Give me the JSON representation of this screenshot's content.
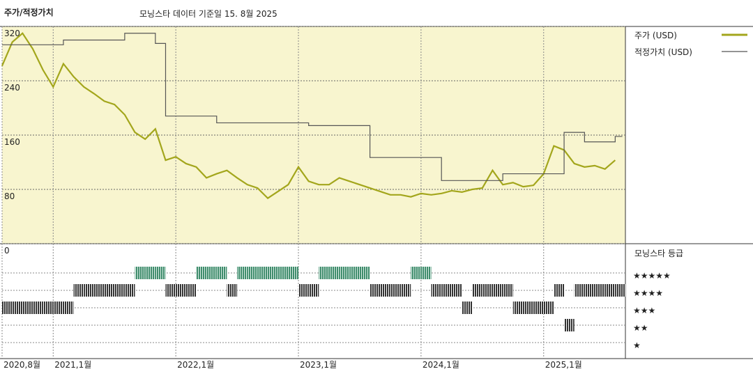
{
  "chart_data": [
    {
      "type": "line",
      "title": "주가/적정가치",
      "subtitle": "모닝스타 데이터 기준일 15. 8월 2025",
      "x": [
        "2020-08",
        "2020-09",
        "2020-10",
        "2020-11",
        "2020-12",
        "2021-01",
        "2021-02",
        "2021-03",
        "2021-04",
        "2021-05",
        "2021-06",
        "2021-07",
        "2021-08",
        "2021-09",
        "2021-10",
        "2021-11",
        "2021-12",
        "2022-01",
        "2022-02",
        "2022-03",
        "2022-04",
        "2022-05",
        "2022-06",
        "2022-07",
        "2022-08",
        "2022-09",
        "2022-10",
        "2022-11",
        "2022-12",
        "2023-01",
        "2023-02",
        "2023-03",
        "2023-04",
        "2023-05",
        "2023-06",
        "2023-07",
        "2023-08",
        "2023-09",
        "2023-10",
        "2023-11",
        "2023-12",
        "2024-01",
        "2024-02",
        "2024-03",
        "2024-04",
        "2024-05",
        "2024-06",
        "2024-07",
        "2024-08",
        "2024-09",
        "2024-10",
        "2024-11",
        "2024-12",
        "2025-01",
        "2025-02",
        "2025-03",
        "2025-04",
        "2025-05",
        "2025-06",
        "2025-07",
        "2025-08"
      ],
      "series": [
        {
          "name": "주가 (USD)",
          "color": "#a3a61c",
          "step": false,
          "values": [
            262,
            297,
            310,
            287,
            256,
            231,
            265,
            246,
            231,
            221,
            210,
            205,
            190,
            164,
            154,
            169,
            123,
            128,
            118,
            113,
            97,
            103,
            108,
            97,
            87,
            82,
            67,
            77,
            87,
            113,
            92,
            87,
            87,
            97,
            92,
            87,
            82,
            77,
            72,
            72,
            69,
            74,
            72,
            74,
            78,
            76,
            80,
            82,
            108,
            87,
            90,
            84,
            86,
            103,
            144,
            138,
            118,
            113,
            115,
            110,
            123
          ]
        },
        {
          "name": "적정가치 (USD)",
          "color": "#555555",
          "step": true,
          "values": [
            293,
            293,
            293,
            293,
            293,
            293,
            300,
            300,
            300,
            300,
            300,
            300,
            310,
            310,
            310,
            295,
            188,
            188,
            188,
            188,
            188,
            178,
            178,
            178,
            178,
            178,
            178,
            178,
            178,
            178,
            174,
            174,
            174,
            174,
            174,
            174,
            127,
            127,
            127,
            127,
            127,
            127,
            127,
            93,
            93,
            93,
            93,
            93,
            93,
            103,
            103,
            103,
            103,
            103,
            103,
            164,
            164,
            150,
            150,
            150,
            158
          ]
        }
      ],
      "xlim": [
        "2020-08",
        "2025-09"
      ],
      "xticks": [
        {
          "value": "2020-08",
          "label": "2020,8월"
        },
        {
          "value": "2021-01",
          "label": "2021,1월"
        },
        {
          "value": "2022-01",
          "label": "2022,1월"
        },
        {
          "value": "2023-01",
          "label": "2023,1월"
        },
        {
          "value": "2024-01",
          "label": "2024,1월"
        },
        {
          "value": "2025-01",
          "label": "2025,1월"
        }
      ],
      "ylim": [
        0,
        320
      ],
      "yticks": [
        0,
        80,
        160,
        240,
        320
      ],
      "background": "#f8f5cf",
      "grid": true
    },
    {
      "type": "rating",
      "title": "모닝스타 등급",
      "levels": [
        5,
        4,
        3,
        2,
        1
      ],
      "level_labels": [
        "★★★★★",
        "★★★★",
        "★★★",
        "★★",
        "★"
      ],
      "colors": {
        "5": "#3f8c6c",
        "other": "#333333"
      },
      "values": [
        3,
        3,
        3,
        3,
        3,
        3,
        3,
        4,
        4,
        4,
        4,
        4,
        4,
        5,
        5,
        5,
        4,
        4,
        4,
        5,
        5,
        5,
        4,
        5,
        5,
        5,
        5,
        5,
        5,
        4,
        4,
        5,
        5,
        5,
        5,
        5,
        4,
        4,
        4,
        4,
        5,
        5,
        4,
        4,
        4,
        3,
        4,
        4,
        4,
        4,
        3,
        3,
        3,
        3,
        4,
        2,
        4,
        4,
        4,
        4,
        4
      ]
    }
  ]
}
